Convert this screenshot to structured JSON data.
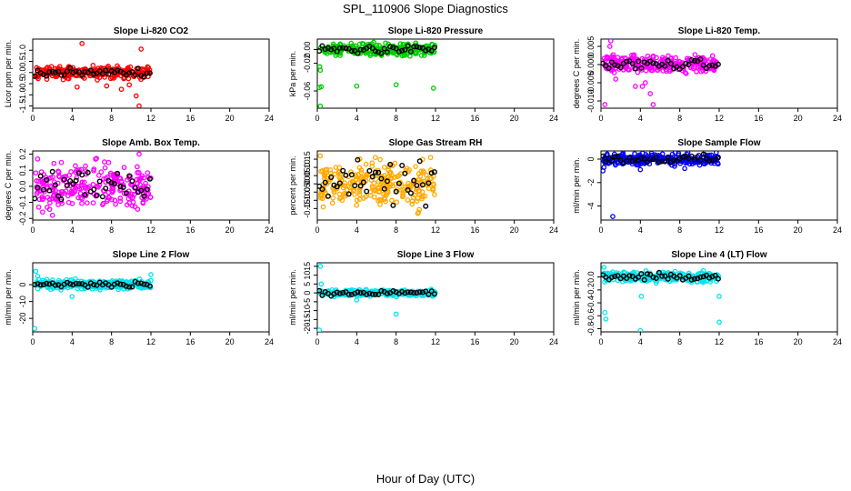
{
  "title": "SPL_110906  Slope Diagnostics",
  "xlabel": "Hour of Day (UTC)",
  "chart_data": [
    {
      "type": "scatter",
      "title": "Slope Li-820 CO2",
      "ylabel": "Licor ppm per min.",
      "xlim": [
        0,
        24
      ],
      "ylim": [
        -1.6,
        1.5
      ],
      "yticks": [
        -1.5,
        -1.0,
        -0.5,
        0.0,
        0.5,
        1.0
      ],
      "color": "#ff0000",
      "spread": 0.2,
      "outliers": [
        [
          4.5,
          -0.65
        ],
        [
          5.0,
          1.3
        ],
        [
          7.5,
          -0.6
        ],
        [
          9.0,
          -0.75
        ],
        [
          10.5,
          -1.05
        ],
        [
          10.8,
          -1.5
        ],
        [
          11.0,
          1.05
        ],
        [
          9.8,
          -0.55
        ]
      ],
      "black_spread": 0.12
    },
    {
      "type": "scatter",
      "title": "Slope Li-820 Pressure",
      "ylabel": "kPa per min.",
      "xlim": [
        0,
        24
      ],
      "ylim": [
        -0.085,
        0.015
      ],
      "yticks": [
        -0.06,
        -0.02,
        0.0
      ],
      "color": "#00cc00",
      "spread": 0.006,
      "outliers": [
        [
          0.3,
          -0.082
        ],
        [
          0.2,
          -0.055
        ],
        [
          0.4,
          -0.054
        ],
        [
          4.0,
          -0.053
        ],
        [
          8.0,
          -0.051
        ],
        [
          11.8,
          -0.056
        ],
        [
          0.3,
          -0.03
        ],
        [
          0.25,
          -0.025
        ]
      ],
      "black_spread": 0.004
    },
    {
      "type": "scatter",
      "title": "Slope Li-820 Temp.",
      "ylabel": "degrees C per min.",
      "xlim": [
        0,
        24
      ],
      "ylim": [
        -0.012,
        0.007
      ],
      "yticks": [
        -0.01,
        -0.005,
        0.0,
        0.005
      ],
      "color": "#ff00ff",
      "spread": 0.0018,
      "outliers": [
        [
          1.0,
          0.0065
        ],
        [
          0.9,
          0.005
        ],
        [
          3.5,
          -0.006
        ],
        [
          4.2,
          -0.006
        ],
        [
          4.5,
          -0.005
        ],
        [
          5.0,
          -0.008
        ],
        [
          5.3,
          -0.011
        ],
        [
          1.5,
          -0.004
        ],
        [
          0.4,
          -0.011
        ]
      ],
      "black_spread": 0.001
    },
    {
      "type": "scatter",
      "title": "Slope Amb. Box Temp.",
      "ylabel": "degrees C per min.",
      "xlim": [
        0,
        24
      ],
      "ylim": [
        -0.21,
        0.22
      ],
      "yticks": [
        -0.2,
        -0.1,
        0.0,
        0.1,
        0.2
      ],
      "color": "#ff00ff",
      "spread": 0.1,
      "outliers": [
        [
          10.8,
          0.2
        ],
        [
          0.5,
          0.17
        ],
        [
          1.0,
          -0.16
        ],
        [
          2.0,
          -0.18
        ]
      ],
      "black_spread": 0.08
    },
    {
      "type": "scatter",
      "title": "Slope Gas Stream RH",
      "ylabel": "percent per min.",
      "xlim": [
        0,
        24
      ],
      "ylim": [
        -0.22,
        0.2
      ],
      "yticks": [
        -0.15,
        -0.1,
        -0.05,
        0.0,
        0.05,
        0.1,
        0.15
      ],
      "color": "#ffaa00",
      "spread": 0.1,
      "outliers": [
        [
          0.3,
          0.17
        ],
        [
          11.5,
          0.16
        ],
        [
          10.2,
          -0.18
        ],
        [
          0.6,
          -0.14
        ]
      ],
      "black_spread": 0.09
    },
    {
      "type": "scatter",
      "title": "Slope Sample Flow",
      "ylabel": "ml/min per min.",
      "xlim": [
        0,
        24
      ],
      "ylim": [
        -5.2,
        0.7
      ],
      "yticks": [
        -4,
        -2,
        0
      ],
      "color": "#0000ff",
      "spread": 0.35,
      "outliers": [
        [
          1.2,
          -4.9
        ],
        [
          0.2,
          -1.0
        ],
        [
          0.3,
          -0.7
        ],
        [
          4.0,
          -0.9
        ],
        [
          8.5,
          -0.8
        ]
      ],
      "black_spread": 0.25
    },
    {
      "type": "scatter",
      "title": "Slope Line 2 Flow",
      "ylabel": "ml/min per min.",
      "xlim": [
        0,
        24
      ],
      "ylim": [
        -28,
        13
      ],
      "yticks": [
        -20,
        -10,
        0
      ],
      "color": "#00e5ee",
      "spread": 2,
      "outliers": [
        [
          0.2,
          -26
        ],
        [
          0.3,
          8
        ],
        [
          4.0,
          -7
        ],
        [
          12.0,
          6
        ],
        [
          0.5,
          5
        ]
      ],
      "black_spread": 1.5
    },
    {
      "type": "scatter",
      "title": "Slope Line 3 Flow",
      "ylabel": "ml/min per min.",
      "xlim": [
        0,
        24
      ],
      "ylim": [
        -22,
        17
      ],
      "yticks": [
        -20,
        -15,
        -10,
        -5,
        0,
        5,
        10,
        15
      ],
      "color": "#00e5ee",
      "spread": 1.3,
      "outliers": [
        [
          0.2,
          -21
        ],
        [
          0.3,
          15
        ],
        [
          0.4,
          5
        ],
        [
          8.0,
          -12
        ],
        [
          4.0,
          -4
        ]
      ],
      "black_spread": 1.0
    },
    {
      "type": "scatter",
      "title": "Slope Line 4 (LT) Flow",
      "ylabel": "ml/min per min.",
      "xlim": [
        0,
        24
      ],
      "ylim": [
        -0.85,
        0.22
      ],
      "yticks": [
        -0.8,
        -0.6,
        -0.4,
        -0.2,
        0.0
      ],
      "color": "#00e5ee",
      "spread": 0.06,
      "outliers": [
        [
          0.4,
          -0.55
        ],
        [
          0.5,
          -0.65
        ],
        [
          4.0,
          -0.83
        ],
        [
          4.1,
          -0.3
        ],
        [
          12.0,
          -0.7
        ],
        [
          12.0,
          -0.3
        ],
        [
          0.3,
          0.15
        ]
      ],
      "black_spread": 0.04
    }
  ],
  "xticks": [
    0,
    4,
    8,
    12,
    16,
    20,
    24
  ]
}
